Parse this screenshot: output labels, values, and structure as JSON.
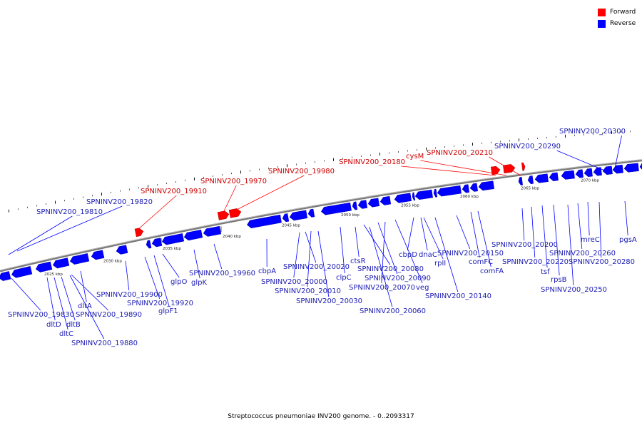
{
  "legend": [
    {
      "label": "Forward",
      "color": "#ff0000"
    },
    {
      "label": "Reverse",
      "color": "#0000ff"
    }
  ],
  "caption": "Streptococcus pneumoniae INV200 genome. - 0..2093317",
  "colors": {
    "forward": "#ff0000",
    "reverse": "#0000ff",
    "forward_label": "#cc0000",
    "reverse_label": "#1c1cb4",
    "backbone": "#777777"
  },
  "ticks": [
    "2025 kbp",
    "2030 kbp",
    "2035 kbp",
    "2040 kbp",
    "2045 kbp",
    "2050 kbp",
    "2055 kbp",
    "2060 kbp",
    "2065 kbp",
    "2070 kbp"
  ],
  "labels": [
    {
      "text": "SPNINV200_19810",
      "strand": "reverse"
    },
    {
      "text": "SPNINV200_19820",
      "strand": "reverse"
    },
    {
      "text": "SPNINV200_19910",
      "strand": "forward"
    },
    {
      "text": "SPNINV200_19970",
      "strand": "forward"
    },
    {
      "text": "SPNINV200_19980",
      "strand": "forward"
    },
    {
      "text": "SPNINV200_20180",
      "strand": "forward"
    },
    {
      "text": "cysM",
      "strand": "forward"
    },
    {
      "text": "SPNINV200_20210",
      "strand": "forward"
    },
    {
      "text": "SPNINV200_20290",
      "strand": "reverse"
    },
    {
      "text": "SPNINV200_20300",
      "strand": "reverse"
    },
    {
      "text": "SPNINV200_19960",
      "strand": "reverse"
    },
    {
      "text": "glpK",
      "strand": "reverse"
    },
    {
      "text": "glpO",
      "strand": "reverse"
    },
    {
      "text": "cbpA",
      "strand": "reverse"
    },
    {
      "text": "SPNINV200_20020",
      "strand": "reverse"
    },
    {
      "text": "SPNINV200_20000",
      "strand": "reverse"
    },
    {
      "text": "SPNINV200_20010",
      "strand": "reverse"
    },
    {
      "text": "SPNINV200_20030",
      "strand": "reverse"
    },
    {
      "text": "SPNINV200_20060",
      "strand": "reverse"
    },
    {
      "text": "ctsR",
      "strand": "reverse"
    },
    {
      "text": "clpC",
      "strand": "reverse"
    },
    {
      "text": "SPNINV200_20080",
      "strand": "reverse"
    },
    {
      "text": "SPNINV200_20090",
      "strand": "reverse"
    },
    {
      "text": "SPNINV200_20070",
      "strand": "reverse"
    },
    {
      "text": "veg",
      "strand": "reverse"
    },
    {
      "text": "cbpD",
      "strand": "reverse"
    },
    {
      "text": "dnaC",
      "strand": "reverse"
    },
    {
      "text": "rplI",
      "strand": "reverse"
    },
    {
      "text": "SPNINV200_20150",
      "strand": "reverse"
    },
    {
      "text": "SPNINV200_20140",
      "strand": "reverse"
    },
    {
      "text": "comFC",
      "strand": "reverse"
    },
    {
      "text": "comFA",
      "strand": "reverse"
    },
    {
      "text": "SPNINV200_20200",
      "strand": "reverse"
    },
    {
      "text": "SPNINV200_20220",
      "strand": "reverse"
    },
    {
      "text": "tsf",
      "strand": "reverse"
    },
    {
      "text": "rpsB",
      "strand": "reverse"
    },
    {
      "text": "SPNINV200_20250",
      "strand": "reverse"
    },
    {
      "text": "mreC",
      "strand": "reverse"
    },
    {
      "text": "SPNINV200_20260",
      "strand": "reverse"
    },
    {
      "text": "SPNINV200_20280",
      "strand": "reverse"
    },
    {
      "text": "pgsA",
      "strand": "reverse"
    },
    {
      "text": "SPNINV200_19900",
      "strand": "reverse"
    },
    {
      "text": "SPNINV200_19920",
      "strand": "reverse"
    },
    {
      "text": "glpF1",
      "strand": "reverse"
    },
    {
      "text": "dltA",
      "strand": "reverse"
    },
    {
      "text": "SPNINV200_19890",
      "strand": "reverse"
    },
    {
      "text": "SPNINV200_19830",
      "strand": "reverse"
    },
    {
      "text": "dltD",
      "strand": "reverse"
    },
    {
      "text": "dltB",
      "strand": "reverse"
    },
    {
      "text": "dltC",
      "strand": "reverse"
    },
    {
      "text": "SPNINV200_19880",
      "strand": "reverse"
    }
  ]
}
